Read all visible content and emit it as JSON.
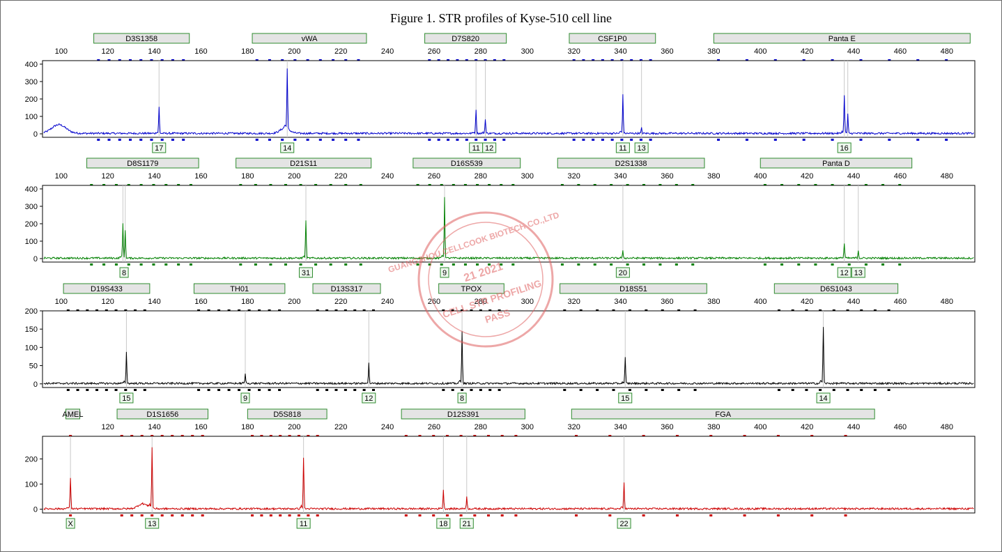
{
  "title": "Figure 1. STR profiles of Kyse-510 cell line",
  "watermark": {
    "lines": [
      "GUANGZHOU CELLCOOK BIOTECH CO.,LTD",
      "21 2021",
      "CELL STR PROFILING",
      "PASS"
    ],
    "color": "#e06060"
  },
  "chart_data": {
    "type": "line",
    "xlim": [
      92,
      492
    ],
    "panels": [
      {
        "color": "#0000cc",
        "ylim": [
          -20,
          420
        ],
        "yticks": [
          0,
          100,
          200,
          300,
          400
        ],
        "xticks": [
          100,
          120,
          140,
          160,
          180,
          200,
          220,
          240,
          260,
          280,
          300,
          320,
          340,
          360,
          380,
          400,
          420,
          440,
          460,
          480
        ],
        "loci": [
          {
            "name": "D3S1358",
            "x0": 114,
            "x1": 155
          },
          {
            "name": "vWA",
            "x0": 182,
            "x1": 231
          },
          {
            "name": "D7S820",
            "x0": 256,
            "x1": 291
          },
          {
            "name": "CSF1P0",
            "x0": 318,
            "x1": 355
          },
          {
            "name": "Panta E",
            "x0": 380,
            "x1": 490
          }
        ],
        "peaks": [
          {
            "x": 142,
            "height": 150
          },
          {
            "x": 197,
            "height": 345
          },
          {
            "x": 278,
            "height": 140
          },
          {
            "x": 282,
            "height": 85
          },
          {
            "x": 341,
            "height": 220
          },
          {
            "x": 349,
            "height": 30
          },
          {
            "x": 436,
            "height": 215
          },
          {
            "x": 437.5,
            "height": 110
          }
        ],
        "humps": [
          {
            "x": 99,
            "height": 50,
            "width": 3
          },
          {
            "x": 196,
            "height": 30,
            "width": 2
          }
        ],
        "calls": [
          {
            "label": "17",
            "x": 142
          },
          {
            "label": "14",
            "x": 197
          },
          {
            "label": "11",
            "x": 278
          },
          {
            "label": "12",
            "x": 282
          },
          {
            "label": "11",
            "x": 341
          },
          {
            "label": "13",
            "x": 349
          },
          {
            "label": "16",
            "x": 436
          }
        ]
      },
      {
        "color": "#008000",
        "ylim": [
          -20,
          420
        ],
        "yticks": [
          0,
          100,
          200,
          300,
          400
        ],
        "xticks": [
          100,
          120,
          140,
          160,
          180,
          200,
          220,
          240,
          260,
          280,
          300,
          320,
          340,
          360,
          380,
          400,
          420,
          440,
          460,
          480
        ],
        "loci": [
          {
            "name": "D8S1179",
            "x0": 111,
            "x1": 159
          },
          {
            "name": "D21S11",
            "x0": 175,
            "x1": 233
          },
          {
            "name": "D16S539",
            "x0": 251,
            "x1": 297
          },
          {
            "name": "D2S1338",
            "x0": 313,
            "x1": 376
          },
          {
            "name": "Panta D",
            "x0": 400,
            "x1": 465
          }
        ],
        "peaks": [
          {
            "x": 126.5,
            "height": 190
          },
          {
            "x": 127.5,
            "height": 160
          },
          {
            "x": 205,
            "height": 215
          },
          {
            "x": 264.5,
            "height": 345
          },
          {
            "x": 341,
            "height": 40
          },
          {
            "x": 436,
            "height": 85
          },
          {
            "x": 442,
            "height": 45
          }
        ],
        "humps": [],
        "calls": [
          {
            "label": "8",
            "x": 127
          },
          {
            "label": "31",
            "x": 205
          },
          {
            "label": "9",
            "x": 264.5
          },
          {
            "label": "20",
            "x": 341
          },
          {
            "label": "12",
            "x": 436
          },
          {
            "label": "13",
            "x": 442
          }
        ]
      },
      {
        "color": "#000000",
        "ylim": [
          -10,
          200
        ],
        "yticks": [
          0,
          50,
          100,
          150,
          200
        ],
        "xticks": [
          100,
          120,
          140,
          160,
          180,
          200,
          220,
          240,
          260,
          280,
          300,
          320,
          340,
          360,
          380,
          400,
          420,
          440,
          460,
          480
        ],
        "loci": [
          {
            "name": "D19S433",
            "x0": 101,
            "x1": 138
          },
          {
            "name": "TH01",
            "x0": 157,
            "x1": 196
          },
          {
            "name": "D13S317",
            "x0": 208,
            "x1": 237
          },
          {
            "name": "TPOX",
            "x0": 262,
            "x1": 290
          },
          {
            "name": "D18S51",
            "x0": 314,
            "x1": 377
          },
          {
            "name": "D6S1043",
            "x0": 406,
            "x1": 459
          }
        ],
        "peaks": [
          {
            "x": 128,
            "height": 85
          },
          {
            "x": 179,
            "height": 25
          },
          {
            "x": 232,
            "height": 55
          },
          {
            "x": 272,
            "height": 145
          },
          {
            "x": 342,
            "height": 70
          },
          {
            "x": 427,
            "height": 155
          }
        ],
        "humps": [],
        "calls": [
          {
            "label": "15",
            "x": 128
          },
          {
            "label": "9",
            "x": 179
          },
          {
            "label": "12",
            "x": 232
          },
          {
            "label": "8",
            "x": 272
          },
          {
            "label": "15",
            "x": 342
          },
          {
            "label": "14",
            "x": 427
          }
        ]
      },
      {
        "color": "#cc0000",
        "ylim": [
          -15,
          290
        ],
        "yticks": [
          0,
          100,
          200
        ],
        "xticks": [
          120,
          140,
          160,
          180,
          200,
          220,
          240,
          260,
          280,
          300,
          320,
          340,
          360,
          380,
          400,
          420,
          440,
          460,
          480
        ],
        "loci": [
          {
            "name": "AMEL",
            "x0": 102,
            "x1": 108
          },
          {
            "name": "D1S1656",
            "x0": 124,
            "x1": 163
          },
          {
            "name": "D5S818",
            "x0": 180,
            "x1": 214
          },
          {
            "name": "D12S391",
            "x0": 246,
            "x1": 299
          },
          {
            "name": "FGA",
            "x0": 319,
            "x1": 449
          }
        ],
        "peaks": [
          {
            "x": 104,
            "height": 125
          },
          {
            "x": 139,
            "height": 240
          },
          {
            "x": 204,
            "height": 205
          },
          {
            "x": 264,
            "height": 75
          },
          {
            "x": 274,
            "height": 50
          },
          {
            "x": 341.5,
            "height": 105
          }
        ],
        "humps": [
          {
            "x": 135,
            "height": 20,
            "width": 2
          }
        ],
        "calls": [
          {
            "label": "X",
            "x": 104
          },
          {
            "label": "13",
            "x": 139
          },
          {
            "label": "11",
            "x": 204
          },
          {
            "label": "18",
            "x": 264
          },
          {
            "label": "21",
            "x": 274
          },
          {
            "label": "22",
            "x": 341.5
          }
        ]
      }
    ]
  }
}
